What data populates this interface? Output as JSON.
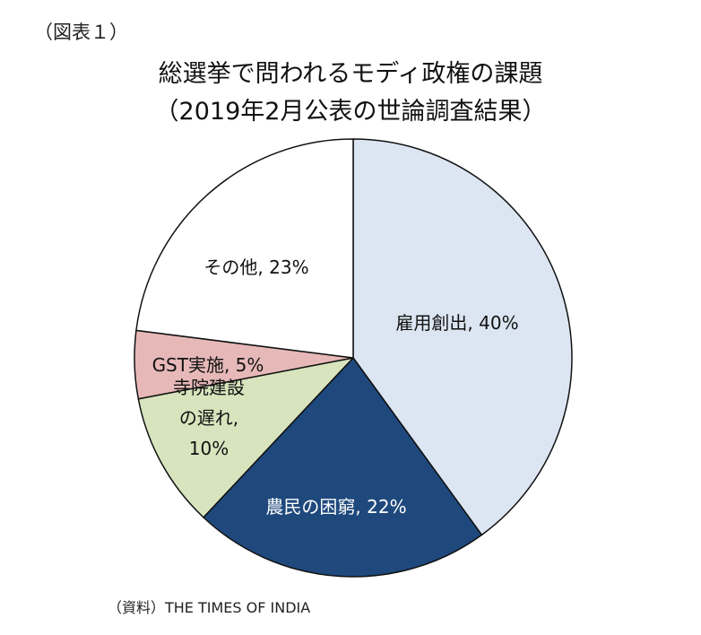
{
  "figure_label": "（図表１）",
  "source_note": "（資料）THE TIMES OF INDIA",
  "chart_data": {
    "type": "pie",
    "title": [
      "総選挙で問われるモディ政権の課題",
      "（2019年2月公表の世論調査結果）"
    ],
    "start": "12 o'clock",
    "direction": "clockwise",
    "slices": [
      {
        "name": "雇用創出",
        "value": 40,
        "label_lines": [
          "雇用創出, 40%"
        ],
        "color": "#dce6f2",
        "text_color": "#111111"
      },
      {
        "name": "農民の困窮",
        "value": 22,
        "label_lines": [
          "農民の困窮, 22%"
        ],
        "color": "#1f497d",
        "text_color": "#ffffff"
      },
      {
        "name": "寺院建設の遅れ",
        "value": 10,
        "label_lines": [
          "寺院建設",
          "の遅れ,",
          "10%"
        ],
        "color": "#d7e4bd",
        "text_color": "#111111"
      },
      {
        "name": "GST実施",
        "value": 5,
        "label_lines": [
          "GST実施, 5%"
        ],
        "color": "#e6b9b8",
        "text_color": "#111111"
      },
      {
        "name": "その他",
        "value": 23,
        "label_lines": [
          "その他, 23%"
        ],
        "color": "#ffffff",
        "text_color": "#111111"
      }
    ]
  }
}
